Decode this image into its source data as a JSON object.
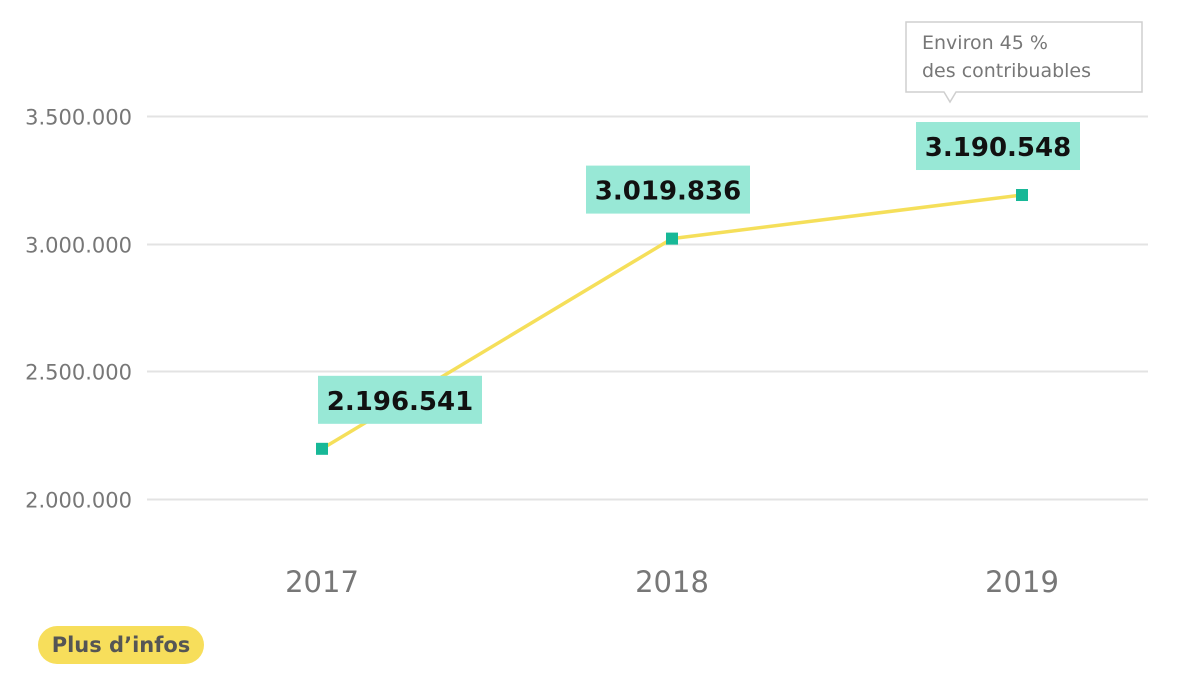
{
  "colors": {
    "line": "#f5df5a",
    "marker": "#17b897",
    "label_bg": "#98e8d6",
    "grid": "#e3e3e3",
    "axis_text": "#777777",
    "button_bg": "#f7de5b",
    "callout_border": "#cfcfcf"
  },
  "chart_data": {
    "type": "line",
    "categories": [
      "2017",
      "2018",
      "2019"
    ],
    "values": [
      2196541,
      3019836,
      3190548
    ],
    "data_labels": [
      "2.196.541",
      "3.019.836",
      "3.190.548"
    ],
    "yticks": [
      2000000,
      2500000,
      3000000,
      3500000
    ],
    "ytick_labels": [
      "2.000.000",
      "2.500.000",
      "3.000.000",
      "3.500.000"
    ],
    "ylim": [
      1800000,
      3900000
    ],
    "grid": true,
    "legend": "none",
    "annotation": {
      "category": "2019",
      "lines": [
        "Environ 45 %",
        "des contribuables"
      ]
    },
    "title": "",
    "xlabel": "",
    "ylabel": ""
  },
  "button": {
    "label": "Plus d’infos"
  }
}
